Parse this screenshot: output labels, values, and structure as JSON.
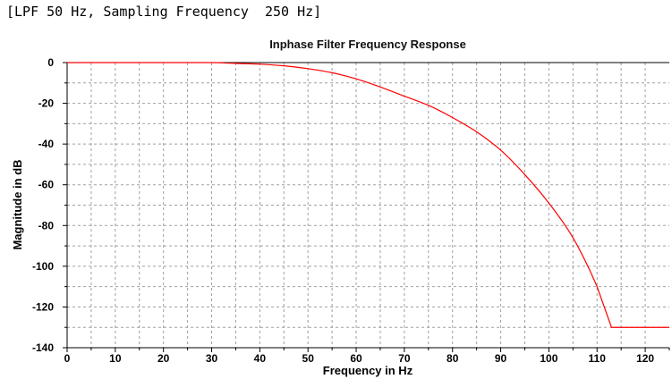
{
  "caption": "[LPF 50 Hz, Sampling Frequency  250 Hz]",
  "colors": {
    "curve": "#ff0000",
    "grid": "#a0a0a0",
    "axis": "#000000",
    "background": "#ffffff"
  },
  "chart_data": {
    "type": "line",
    "title": "Inphase Filter Frequency Response",
    "xlabel": "Frequency in Hz",
    "ylabel": "Magnitude in dB",
    "xlim": [
      0,
      125
    ],
    "ylim": [
      -140,
      0
    ],
    "xticks": [
      "0",
      "10",
      "20",
      "30",
      "40",
      "50",
      "60",
      "70",
      "80",
      "90",
      "100",
      "110",
      "120"
    ],
    "yticks": [
      "0",
      "-20",
      "-40",
      "-60",
      "-80",
      "-100",
      "-120",
      "-140"
    ],
    "grid": true,
    "series": [
      {
        "x": [
          0,
          10,
          20,
          30,
          33,
          35,
          40,
          45,
          50,
          55,
          60,
          65,
          70,
          75,
          80,
          85,
          90,
          95,
          100,
          105,
          110,
          113,
          120,
          125
        ],
        "y": [
          0,
          0,
          0,
          0,
          -0.2,
          -0.4,
          -0.8,
          -1.6,
          -3,
          -5,
          -8,
          -12,
          -16.5,
          -21,
          -27,
          -34,
          -43,
          -55,
          -69,
          -86,
          -110,
          -130,
          -130,
          -130
        ]
      }
    ]
  }
}
